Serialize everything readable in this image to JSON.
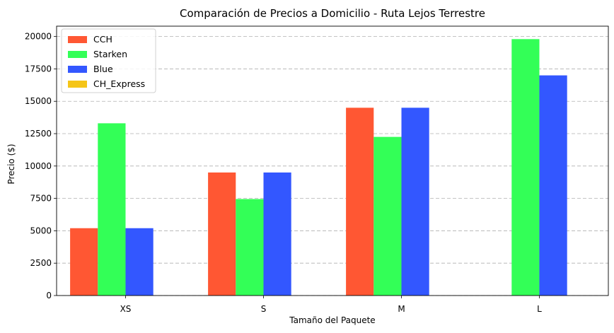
{
  "chart_data": {
    "type": "bar",
    "title": "Comparación de Precios a Domicilio - Ruta Lejos Terrestre",
    "xlabel": "Tamaño del Paquete",
    "ylabel": "Precio ($)",
    "categories": [
      "XS",
      "S",
      "M",
      "L"
    ],
    "series": [
      {
        "name": "CCH",
        "color": "#ff5733",
        "values": [
          5200,
          9500,
          14500,
          null
        ]
      },
      {
        "name": "Starken",
        "color": "#33ff57",
        "values": [
          13300,
          7450,
          12250,
          19800
        ]
      },
      {
        "name": "Blue",
        "color": "#3357ff",
        "values": [
          5200,
          9500,
          14500,
          17000
        ]
      },
      {
        "name": "CH_Express",
        "color": "#f5c518",
        "values": [
          null,
          null,
          null,
          null
        ]
      }
    ],
    "ylim": [
      0,
      20800
    ],
    "yticks": [
      0,
      2500,
      5000,
      7500,
      10000,
      12500,
      15000,
      17500,
      20000
    ],
    "grid": "y-dashed",
    "legend_position": "upper-left"
  }
}
